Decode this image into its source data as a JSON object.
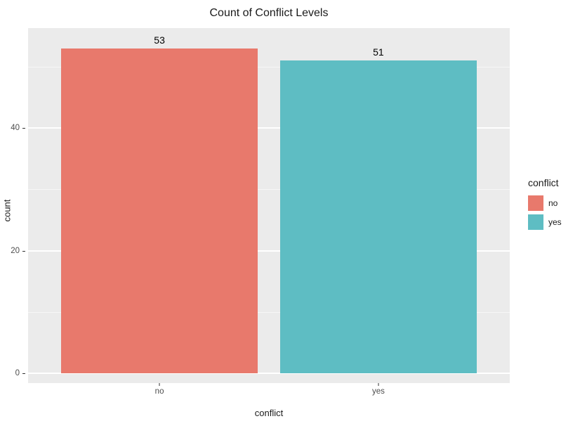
{
  "title": "Count of Conflict Levels",
  "axes": {
    "x_label": "conflict",
    "y_label": "count",
    "y_ticks": [
      0,
      20,
      40
    ],
    "y_minor_ticks": [
      10,
      30,
      50
    ]
  },
  "chart_data": {
    "type": "bar",
    "title": "Count of Conflict Levels",
    "xlabel": "conflict",
    "ylabel": "count",
    "categories": [
      "no",
      "yes"
    ],
    "values": [
      53,
      51
    ],
    "series_colors": [
      "#E8796C",
      "#5EBDC3"
    ],
    "ylim": [
      0,
      56.3
    ],
    "grid": true,
    "panel_background": "#EBEBEB",
    "gridline_color": "#FFFFFF",
    "legend": {
      "title": "conflict",
      "position": "right",
      "entries": [
        {
          "label": "no",
          "color": "#E8796C"
        },
        {
          "label": "yes",
          "color": "#5EBDC3"
        }
      ]
    }
  }
}
